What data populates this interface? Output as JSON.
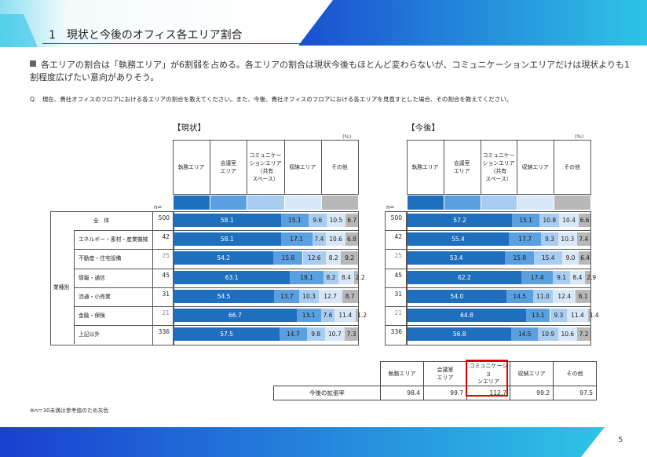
{
  "page": {
    "title": "1　現状と今後のオフィス各エリア割合",
    "summary": "各エリアの割合は「執務エリア」が6割弱を占める。各エリアの割合は現状今後もほとんど変わらないが、コミュニケーションエリアだけは現状よりも1割程度広げたい意向がありそう。",
    "question": "Q.　現在、貴社オフィスのフロアにおける各エリアの割合を教えてください。また、今後、貴社オフィスのフロアにおける各エリアを見直すとした場合、その割合を教えてください。",
    "note": "※n＝30未満は参考値のため灰色",
    "page_number": "5"
  },
  "colors": {
    "shitsumu": "#1f6fbf",
    "kaigi": "#5aa0e0",
    "comm": "#a9cdf0",
    "shuno": "#d9e8f7",
    "other": "#b8b8b8",
    "accent_red": "#e00000"
  },
  "table_common": {
    "n_label": "n=",
    "pct_label": "(%)",
    "category_header": "業種別",
    "headers": [
      "執務エリア",
      "会議室\nエリア",
      "コミュニケー\nションエリア\n（共有\nスペース）",
      "収納エリア",
      "その他"
    ],
    "rows": [
      {
        "label": "全　体",
        "n": "500",
        "ref": false
      },
      {
        "label": "エネルギー・素材・産業機械",
        "n": "42",
        "ref": false
      },
      {
        "label": "不動産・住宅設備",
        "n": "25",
        "ref": true
      },
      {
        "label": "情報・通信",
        "n": "45",
        "ref": false
      },
      {
        "label": "流通・小売業",
        "n": "31",
        "ref": false
      },
      {
        "label": "金融・保険",
        "n": "21",
        "ref": true
      },
      {
        "label": "上記以外",
        "n": "336",
        "ref": false
      }
    ]
  },
  "chart_data": [
    {
      "type": "bar",
      "stacked": true,
      "orientation": "horizontal",
      "title": "【現状】",
      "series": [
        {
          "name": "執務エリア",
          "values": [
            58.1,
            58.1,
            54.2,
            63.1,
            54.5,
            66.7,
            57.5
          ]
        },
        {
          "name": "会議室エリア",
          "values": [
            15.1,
            17.1,
            15.8,
            18.1,
            13.7,
            13.1,
            14.7
          ]
        },
        {
          "name": "コミュニケーションエリア（共有スペース）",
          "values": [
            9.6,
            7.4,
            12.6,
            8.2,
            10.3,
            7.6,
            9.8
          ]
        },
        {
          "name": "収納エリア",
          "values": [
            10.5,
            10.6,
            8.2,
            8.4,
            12.7,
            11.4,
            10.7
          ]
        },
        {
          "name": "その他",
          "values": [
            6.7,
            6.8,
            9.2,
            2.2,
            8.7,
            1.2,
            7.3
          ]
        }
      ],
      "categories": [
        "全　体",
        "エネルギー・素材・産業機械",
        "不動産・住宅設備",
        "情報・通信",
        "流通・小売業",
        "金融・保険",
        "上記以外"
      ],
      "n": [
        "500",
        "42",
        "25",
        "45",
        "31",
        "21",
        "336"
      ],
      "ylabel": "(%)"
    },
    {
      "type": "bar",
      "stacked": true,
      "orientation": "horizontal",
      "title": "【今後】",
      "series": [
        {
          "name": "執務エリア",
          "values": [
            57.2,
            55.4,
            53.4,
            62.2,
            54.0,
            64.8,
            56.8
          ]
        },
        {
          "name": "会議室エリア",
          "values": [
            15.1,
            17.7,
            15.8,
            17.4,
            14.5,
            13.1,
            14.5
          ]
        },
        {
          "name": "コミュニケーションエリア（共有スペース）",
          "values": [
            10.8,
            9.3,
            15.4,
            9.1,
            11.0,
            9.3,
            10.9
          ]
        },
        {
          "name": "収納エリア",
          "values": [
            10.4,
            10.3,
            9.0,
            8.4,
            12.4,
            11.4,
            10.6
          ]
        },
        {
          "name": "その他",
          "values": [
            6.6,
            7.4,
            6.4,
            2.9,
            8.1,
            1.4,
            7.2
          ]
        }
      ],
      "categories": [
        "全　体",
        "エネルギー・素材・産業機械",
        "不動産・住宅設備",
        "情報・通信",
        "流通・小売業",
        "金融・保険",
        "上記以外"
      ],
      "n": [
        "500",
        "42",
        "25",
        "45",
        "31",
        "21",
        "336"
      ],
      "ylabel": "(%)"
    }
  ],
  "expansion_table": {
    "row_label": "今後の拡張率",
    "headers": [
      "執務エリア",
      "会議室\nエリア",
      "コミュニケーショ\nンエリア",
      "収納エリア",
      "その他"
    ],
    "values": [
      "98.4",
      "99.7",
      "112.7",
      "99.2",
      "97.5"
    ],
    "highlight_index": 2
  }
}
